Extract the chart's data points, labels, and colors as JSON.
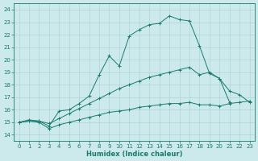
{
  "xlabel": "Humidex (Indice chaleur)",
  "ylabel": "",
  "bg_color": "#cce9ec",
  "grid_color": "#aed4d8",
  "line_color": "#1a7a6e",
  "xlim": [
    -0.5,
    23.5
  ],
  "ylim": [
    13.5,
    24.5
  ],
  "yticks": [
    14,
    15,
    16,
    17,
    18,
    19,
    20,
    21,
    22,
    23,
    24
  ],
  "xticks": [
    0,
    1,
    2,
    3,
    4,
    5,
    6,
    7,
    8,
    9,
    10,
    11,
    12,
    13,
    14,
    15,
    16,
    17,
    18,
    19,
    20,
    21,
    22,
    23
  ],
  "line1_x": [
    0,
    1,
    2,
    3,
    4,
    5,
    6,
    7,
    8,
    9,
    10,
    11,
    12,
    13,
    14,
    15,
    16,
    17,
    18,
    19,
    20,
    21
  ],
  "line1_y": [
    15.0,
    15.2,
    15.1,
    14.7,
    15.9,
    16.0,
    16.5,
    17.1,
    18.8,
    20.3,
    19.5,
    21.9,
    22.4,
    22.8,
    22.9,
    23.5,
    23.2,
    23.1,
    21.1,
    18.9,
    18.5,
    16.6
  ],
  "line2_x": [
    0,
    1,
    2,
    3,
    4,
    5,
    6,
    7,
    8,
    9,
    10,
    11,
    12,
    13,
    14,
    15,
    16,
    17,
    18,
    19,
    20,
    21,
    22,
    23
  ],
  "line2_y": [
    15.0,
    15.1,
    15.1,
    14.9,
    15.3,
    15.7,
    16.1,
    16.5,
    16.9,
    17.3,
    17.7,
    18.0,
    18.3,
    18.6,
    18.8,
    19.0,
    19.2,
    19.4,
    18.8,
    19.0,
    18.5,
    17.5,
    17.2,
    16.6
  ],
  "line3_x": [
    0,
    1,
    2,
    3,
    4,
    5,
    6,
    7,
    8,
    9,
    10,
    11,
    12,
    13,
    14,
    15,
    16,
    17,
    18,
    19,
    20,
    21,
    22,
    23
  ],
  "line3_y": [
    15.0,
    15.1,
    15.0,
    14.5,
    14.8,
    15.0,
    15.2,
    15.4,
    15.6,
    15.8,
    15.9,
    16.0,
    16.2,
    16.3,
    16.4,
    16.5,
    16.5,
    16.6,
    16.4,
    16.4,
    16.3,
    16.5,
    16.6,
    16.7
  ]
}
